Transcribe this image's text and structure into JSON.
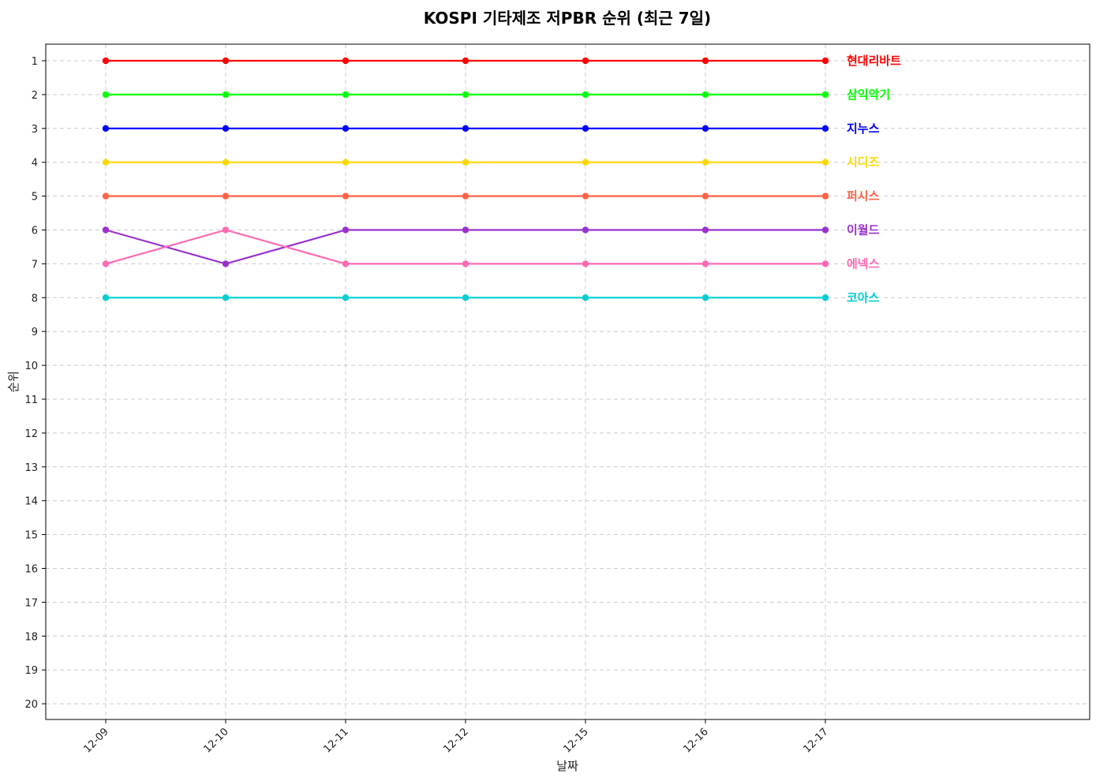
{
  "chart_data": {
    "type": "line",
    "title": "KOSPI 기타제조 저PBR 순위 (최근 7일)",
    "xlabel": "날짜",
    "ylabel": "순위",
    "categories": [
      "12-09",
      "12-10",
      "12-11",
      "12-12",
      "12-15",
      "12-16",
      "12-17"
    ],
    "y_ticks": [
      1,
      2,
      3,
      4,
      5,
      6,
      7,
      8,
      9,
      10,
      11,
      12,
      13,
      14,
      15,
      16,
      17,
      18,
      19,
      20
    ],
    "ylim": [
      20.5,
      0.5
    ],
    "y_inverted": true,
    "grid": true,
    "legend": "labels at line ends (right)",
    "series": [
      {
        "name": "현대리바트",
        "color": "#ff0000",
        "values": [
          1,
          1,
          1,
          1,
          1,
          1,
          1
        ]
      },
      {
        "name": "삼익악기",
        "color": "#00ff00",
        "values": [
          2,
          2,
          2,
          2,
          2,
          2,
          2
        ]
      },
      {
        "name": "지누스",
        "color": "#0000ff",
        "values": [
          3,
          3,
          3,
          3,
          3,
          3,
          3
        ]
      },
      {
        "name": "시디즈",
        "color": "#ffd700",
        "values": [
          4,
          4,
          4,
          4,
          4,
          4,
          4
        ]
      },
      {
        "name": "퍼시스",
        "color": "#ff6347",
        "values": [
          5,
          5,
          5,
          5,
          5,
          5,
          5
        ]
      },
      {
        "name": "이월드",
        "color": "#9932cc",
        "values": [
          6,
          7,
          6,
          6,
          6,
          6,
          6
        ]
      },
      {
        "name": "에넥스",
        "color": "#ff69b4",
        "values": [
          7,
          6,
          7,
          7,
          7,
          7,
          7
        ]
      },
      {
        "name": "코아스",
        "color": "#00ced1",
        "values": [
          8,
          8,
          8,
          8,
          8,
          8,
          8
        ]
      }
    ]
  }
}
